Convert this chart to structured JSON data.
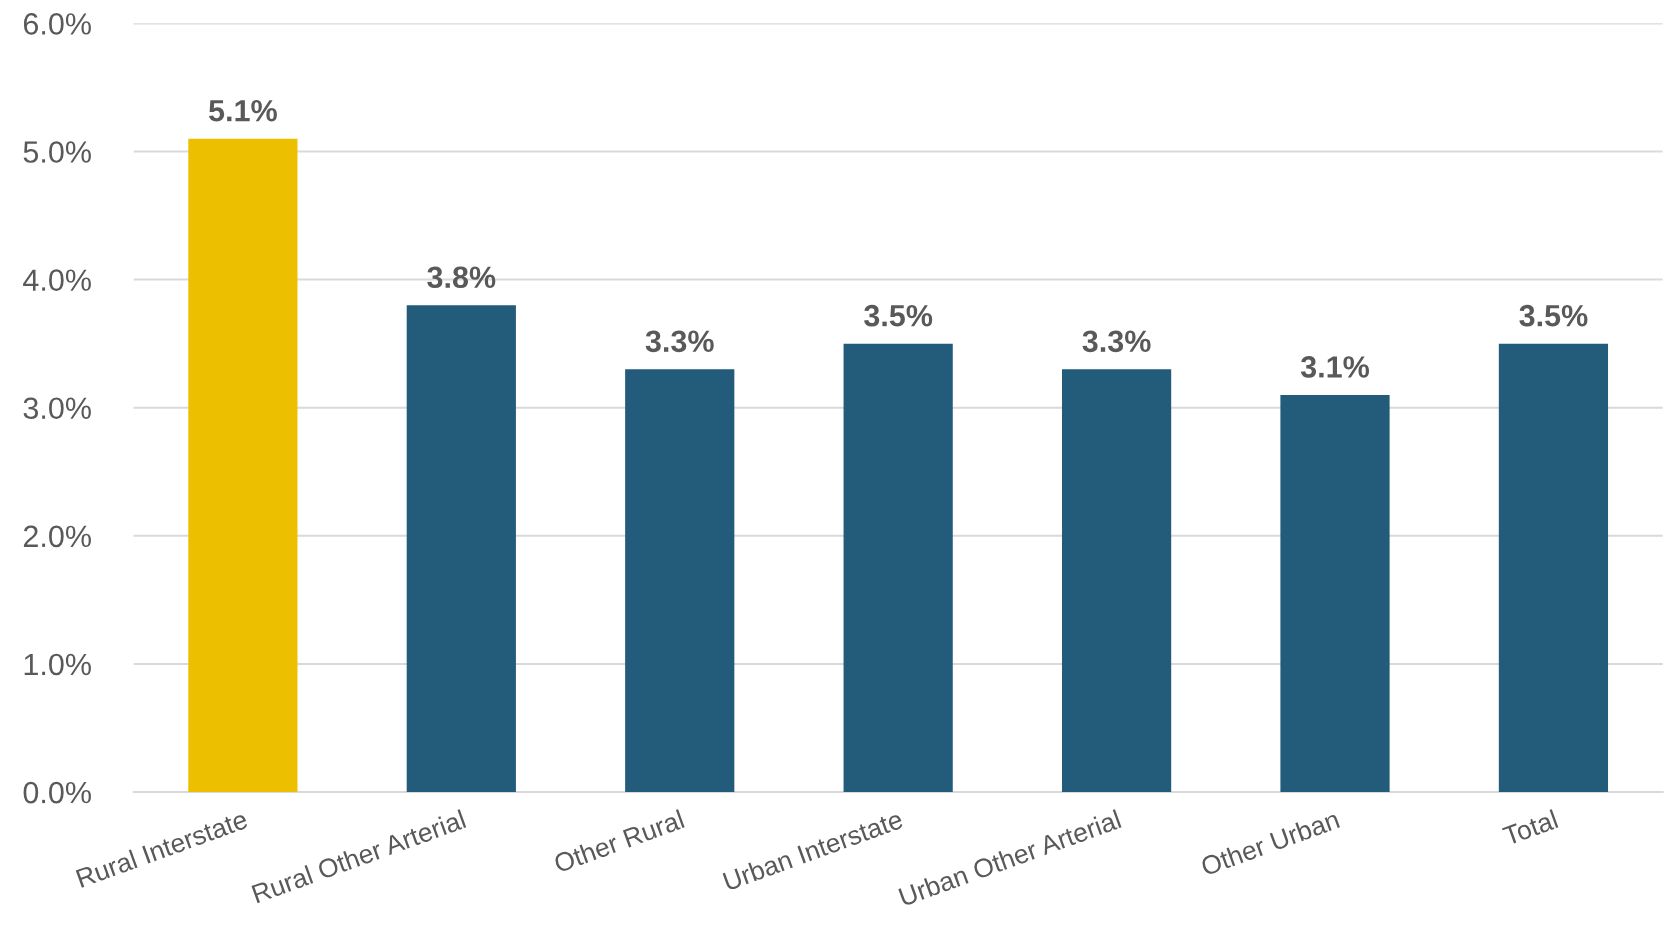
{
  "chart_data": {
    "type": "bar",
    "categories": [
      "Rural Interstate",
      "Rural Other Arterial",
      "Other Rural",
      "Urban Interstate",
      "Urban Other Arterial",
      "Other Urban",
      "Total"
    ],
    "values": [
      5.1,
      3.8,
      3.3,
      3.5,
      3.3,
      3.1,
      3.5
    ],
    "colors": [
      "#ecc000",
      "#235b7a",
      "#235b7a",
      "#235b7a",
      "#235b7a",
      "#235b7a",
      "#235b7a"
    ],
    "value_labels": [
      "5.1%",
      "3.8%",
      "3.3%",
      "3.5%",
      "3.3%",
      "3.1%",
      "3.5%"
    ],
    "ylim": [
      0,
      6
    ],
    "yticks": [
      {
        "value": 0,
        "label": "0.0%"
      },
      {
        "value": 1,
        "label": "1.0%"
      },
      {
        "value": 2,
        "label": "2.0%"
      },
      {
        "value": 3,
        "label": "3.0%"
      },
      {
        "value": 4,
        "label": "4.0%"
      },
      {
        "value": 5,
        "label": "5.0%"
      },
      {
        "value": 6,
        "label": "6.0%"
      }
    ],
    "grid": "y"
  }
}
